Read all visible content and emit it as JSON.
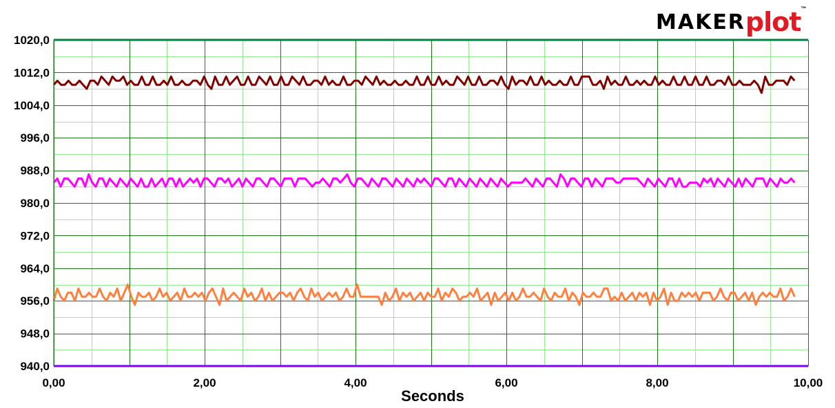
{
  "logo": {
    "maker": "MAKER",
    "plot": "plot",
    "tm": "™"
  },
  "chart_data": {
    "type": "line",
    "xlabel": "Seconds",
    "ylabel": "",
    "xlim": [
      0,
      10
    ],
    "ylim": [
      940,
      1020
    ],
    "x_ticks": [
      "0,00",
      "2,00",
      "4,00",
      "6,00",
      "8,00",
      "10,00"
    ],
    "y_ticks": [
      "1020,0",
      "1012,0",
      "1004,0",
      "996,0",
      "988,0",
      "980,0",
      "972,0",
      "964,0",
      "956,0",
      "948,0",
      "940,0"
    ],
    "grid": true,
    "x_end": 9.82,
    "series": [
      {
        "color": "#800000",
        "values": [
          1009,
          1010,
          1009,
          1009,
          1010,
          1009,
          1009,
          1010,
          1009,
          1008,
          1010,
          1010,
          1009,
          1011,
          1010,
          1009,
          1011,
          1010,
          1010,
          1011,
          1009,
          1010,
          1009,
          1009,
          1011,
          1009,
          1009,
          1011,
          1009,
          1009,
          1010,
          1009,
          1011,
          1009,
          1009,
          1010,
          1009,
          1009,
          1010,
          1010,
          1009,
          1011,
          1009,
          1008,
          1011,
          1009,
          1009,
          1011,
          1009,
          1010,
          1011,
          1009,
          1009,
          1011,
          1009,
          1009,
          1011,
          1010,
          1009,
          1011,
          1009,
          1009,
          1011,
          1009,
          1009,
          1011,
          1010,
          1009,
          1011,
          1009,
          1009,
          1010,
          1010,
          1009,
          1011,
          1009,
          1010,
          1009,
          1009,
          1011,
          1009,
          1009,
          1010,
          1010,
          1009,
          1011,
          1010,
          1009,
          1011,
          1009,
          1010,
          1009,
          1009,
          1010,
          1009,
          1009,
          1010,
          1009,
          1009,
          1011,
          1009,
          1009,
          1011,
          1009,
          1009,
          1011,
          1009,
          1010,
          1009,
          1009,
          1011,
          1010,
          1009,
          1011,
          1009,
          1009,
          1011,
          1009,
          1009,
          1010,
          1010,
          1009,
          1011,
          1009,
          1008,
          1011,
          1009,
          1010,
          1010,
          1009,
          1011,
          1009,
          1009,
          1011,
          1009,
          1010,
          1009,
          1009,
          1010,
          1009,
          1009,
          1011,
          1009,
          1009,
          1011,
          1011,
          1011,
          1009,
          1009,
          1010,
          1008,
          1011,
          1009,
          1010,
          1009,
          1009,
          1011,
          1009,
          1009,
          1010,
          1009,
          1010,
          1009,
          1009,
          1011,
          1009,
          1010,
          1009,
          1009,
          1011,
          1009,
          1009,
          1011,
          1009,
          1009,
          1011,
          1009,
          1009,
          1011,
          1009,
          1009,
          1010,
          1010,
          1009,
          1011,
          1009,
          1009,
          1010,
          1009,
          1009,
          1009,
          1010,
          1009,
          1007,
          1011,
          1009,
          1009,
          1010,
          1010,
          1010,
          1009,
          1011,
          1010
        ]
      },
      {
        "color": "#ff00ff",
        "values": [
          985,
          986,
          984,
          986,
          986,
          985,
          984,
          986,
          986,
          984,
          987,
          985,
          984,
          986,
          986,
          984,
          986,
          985,
          984,
          986,
          985,
          984,
          986,
          985,
          984,
          986,
          984,
          984,
          986,
          984,
          985,
          986,
          984,
          986,
          986,
          984,
          986,
          984,
          985,
          986,
          985,
          986,
          984,
          986,
          986,
          985,
          984,
          986,
          986,
          985,
          986,
          984,
          985,
          986,
          984,
          986,
          985,
          984,
          986,
          986,
          985,
          984,
          986,
          986,
          985,
          984,
          986,
          986,
          986,
          984,
          986,
          986,
          986,
          985,
          984,
          985,
          985,
          986,
          985,
          984,
          986,
          986,
          985,
          986,
          987,
          985,
          984,
          986,
          986,
          985,
          984,
          986,
          985,
          984,
          986,
          986,
          985,
          984,
          986,
          985,
          984,
          986,
          985,
          984,
          986,
          985,
          986,
          985,
          984,
          986,
          986,
          985,
          984,
          986,
          986,
          984,
          986,
          985,
          984,
          986,
          985,
          984,
          986,
          985,
          984,
          986,
          985,
          984,
          986,
          985,
          984,
          985,
          985,
          985,
          985,
          986,
          985,
          984,
          986,
          985,
          984,
          986,
          986,
          985,
          984,
          987,
          986,
          984,
          986,
          986,
          985,
          984,
          986,
          986,
          984,
          986,
          985,
          984,
          986,
          986,
          986,
          985,
          985,
          986,
          986,
          986,
          986,
          986,
          985,
          984,
          986,
          985,
          984,
          986,
          985,
          984,
          986,
          986,
          984,
          986,
          984,
          984,
          985,
          985,
          985,
          984,
          986,
          985,
          986,
          984,
          986,
          985,
          984,
          986,
          985,
          984,
          986,
          984,
          986,
          985,
          984,
          986,
          986,
          986,
          984,
          986,
          985,
          984,
          986,
          985,
          985,
          986,
          985
        ]
      },
      {
        "color": "#ff7f3f",
        "values": [
          956,
          959,
          957,
          956,
          958,
          958,
          956,
          959,
          957,
          957,
          958,
          957,
          957,
          959,
          957,
          956,
          958,
          957,
          959,
          956,
          958,
          960,
          957,
          955,
          958,
          957,
          957,
          958,
          956,
          957,
          959,
          957,
          958,
          956,
          957,
          958,
          956,
          959,
          957,
          957,
          958,
          957,
          958,
          956,
          958,
          959,
          957,
          955,
          959,
          956,
          957,
          958,
          957,
          956,
          959,
          957,
          958,
          956,
          957,
          959,
          956,
          958,
          956,
          957,
          958,
          958,
          957,
          958,
          956,
          958,
          959,
          957,
          956,
          959,
          957,
          958,
          956,
          957,
          958,
          957,
          958,
          956,
          957,
          959,
          957,
          957,
          960,
          957,
          957,
          957,
          957,
          957,
          957,
          955,
          958,
          956,
          957,
          959,
          956,
          958,
          957,
          958,
          956,
          957,
          958,
          956,
          958,
          957,
          957,
          959,
          956,
          958,
          957,
          959,
          958,
          956,
          957,
          957,
          958,
          957,
          959,
          956,
          957,
          958,
          955,
          958,
          956,
          957,
          958,
          956,
          958,
          956,
          957,
          959,
          957,
          957,
          958,
          957,
          956,
          959,
          957,
          956,
          958,
          957,
          957,
          959,
          956,
          958,
          957,
          955,
          958,
          957,
          957,
          958,
          957,
          957,
          959,
          959,
          956,
          957,
          956,
          958,
          956,
          957,
          958,
          956,
          958,
          957,
          958,
          955,
          958,
          956,
          957,
          959,
          955,
          958,
          956,
          956,
          958,
          957,
          958,
          957,
          958,
          956,
          958,
          958,
          958,
          956,
          957,
          959,
          957,
          956,
          958,
          958,
          956,
          957,
          958,
          956,
          958,
          955,
          957,
          958,
          957,
          958,
          957,
          957,
          959,
          956,
          957,
          959,
          957
        ]
      },
      {
        "color": "#008040",
        "constant": 1020
      },
      {
        "color": "#8000ff",
        "constant": 940
      }
    ]
  }
}
